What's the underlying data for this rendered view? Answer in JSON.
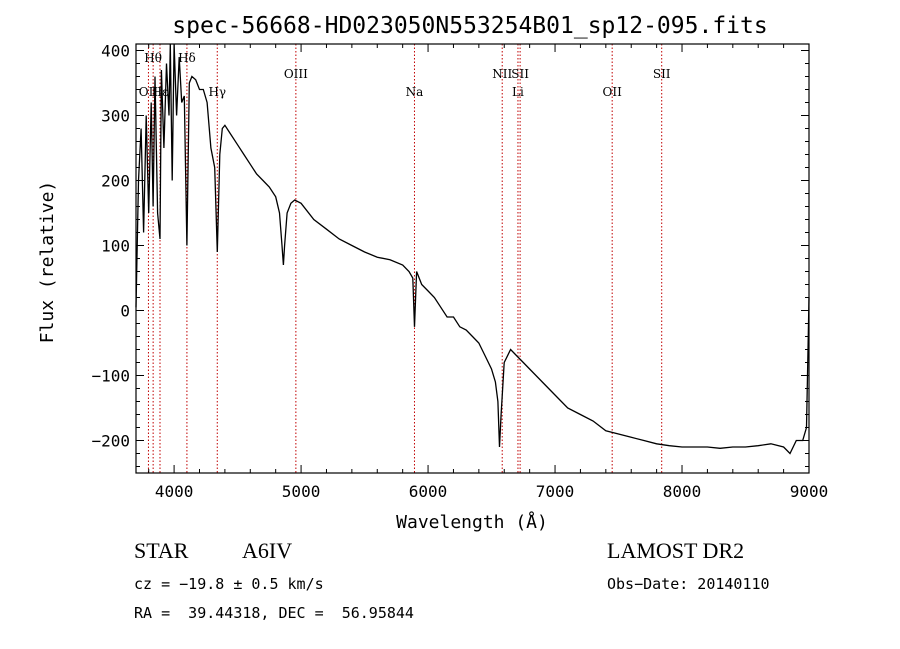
{
  "chart_data": {
    "type": "line",
    "title": "spec-56668-HD023050N553254B01_sp12-095.fits",
    "xlabel": "Wavelength (Å)",
    "ylabel": "Flux (relative)",
    "xlim": [
      3700,
      9000
    ],
    "ylim": [
      -250,
      410
    ],
    "x_ticks": [
      4000,
      5000,
      6000,
      7000,
      8000,
      9000
    ],
    "y_ticks": [
      -200,
      -100,
      0,
      100,
      200,
      300,
      400
    ],
    "grid": false,
    "series": [
      {
        "x": [
          3700,
          3720,
          3740,
          3760,
          3780,
          3800,
          3820,
          3835,
          3850,
          3870,
          3889,
          3900,
          3920,
          3940,
          3960,
          3970,
          3985,
          4000,
          4020,
          4040,
          4060,
          4080,
          4101,
          4120,
          4140,
          4170,
          4200,
          4230,
          4260,
          4290,
          4320,
          4340,
          4360,
          4380,
          4400,
          4450,
          4500,
          4550,
          4600,
          4650,
          4700,
          4750,
          4800,
          4830,
          4850,
          4861,
          4870,
          4890,
          4920,
          4950,
          5000,
          5100,
          5200,
          5300,
          5400,
          5500,
          5600,
          5700,
          5800,
          5850,
          5880,
          5893,
          5910,
          5950,
          6000,
          6050,
          6100,
          6150,
          6200,
          6250,
          6300,
          6350,
          6400,
          6450,
          6500,
          6530,
          6550,
          6563,
          6575,
          6600,
          6650,
          6700,
          6750,
          6800,
          6900,
          7000,
          7100,
          7200,
          7300,
          7400,
          7500,
          7600,
          7700,
          7800,
          7900,
          8000,
          8100,
          8200,
          8300,
          8400,
          8500,
          8600,
          8700,
          8800,
          8850,
          8900,
          8950,
          8980,
          9000
        ],
        "y": [
          5,
          200,
          280,
          120,
          300,
          150,
          320,
          160,
          360,
          150,
          110,
          370,
          250,
          380,
          300,
          410,
          200,
          410,
          300,
          390,
          320,
          330,
          100,
          350,
          360,
          355,
          340,
          340,
          320,
          250,
          220,
          90,
          240,
          280,
          285,
          270,
          255,
          240,
          225,
          210,
          200,
          190,
          175,
          150,
          100,
          70,
          100,
          150,
          165,
          170,
          165,
          140,
          125,
          110,
          100,
          90,
          82,
          78,
          70,
          60,
          50,
          -25,
          60,
          40,
          30,
          20,
          5,
          -10,
          -10,
          -25,
          -30,
          -40,
          -50,
          -70,
          -90,
          -110,
          -140,
          -210,
          -160,
          -80,
          -60,
          -70,
          -80,
          -90,
          -110,
          -130,
          -150,
          -160,
          -170,
          -185,
          -190,
          -195,
          -200,
          -205,
          -208,
          -210,
          -210,
          -210,
          -212,
          -210,
          -210,
          -208,
          -205,
          -210,
          -220,
          -200,
          -200,
          -180,
          20
        ]
      }
    ],
    "line_markers": [
      {
        "wl": 3798,
        "label": "OII"
      },
      {
        "wl": 3835,
        "label": "Hθ"
      },
      {
        "wl": 3889,
        "label": "Hε"
      },
      {
        "wl": 4101,
        "label": "Hδ"
      },
      {
        "wl": 4340,
        "label": "Hγ"
      },
      {
        "wl": 4959,
        "label": "OIII"
      },
      {
        "wl": 5893,
        "label": "Na"
      },
      {
        "wl": 6584,
        "label": "NII"
      },
      {
        "wl": 6708,
        "label": "Li"
      },
      {
        "wl": 6725,
        "label": "SII"
      },
      {
        "wl": 7450,
        "label": "OII"
      },
      {
        "wl": 7840,
        "label": "SII"
      }
    ]
  },
  "footer": {
    "object_type": "STAR",
    "spectral_class": "A6IV",
    "survey": "LAMOST DR2",
    "cz": "cz = −19.8 ± 0.5 km/s",
    "obs_date": "Obs−Date: 20140110",
    "ra_dec": "RA =  39.44318, DEC =  56.95844"
  },
  "colors": {
    "line": "#000000",
    "marker": "#c00000"
  }
}
